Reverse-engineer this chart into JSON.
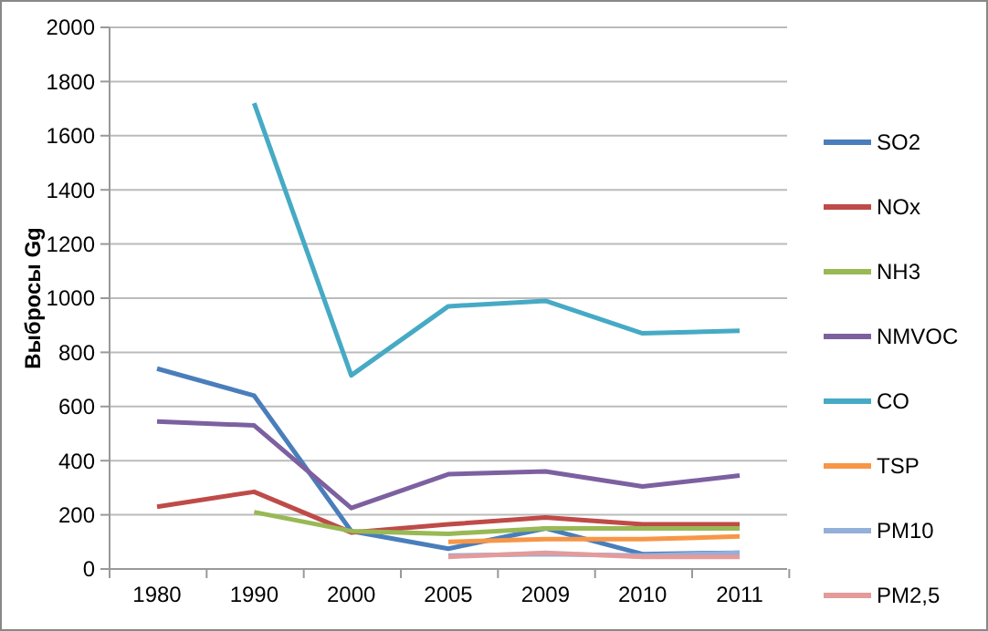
{
  "chart_data": {
    "type": "line",
    "ylabel": "Выбросы Gg",
    "categories": [
      "1980",
      "1990",
      "2000",
      "2005",
      "2009",
      "2010",
      "2011"
    ],
    "ylim": [
      0,
      2000
    ],
    "yticks": [
      0,
      200,
      400,
      600,
      800,
      1000,
      1200,
      1400,
      1600,
      1800,
      2000
    ],
    "grid": "y",
    "legend": "right",
    "marker": "none",
    "series": [
      {
        "name": "SO2",
        "color": "#4a7ebb",
        "values": [
          740,
          640,
          140,
          75,
          150,
          55,
          60
        ]
      },
      {
        "name": "NOx",
        "color": "#be4b48",
        "values": [
          230,
          285,
          135,
          165,
          190,
          165,
          165
        ]
      },
      {
        "name": "NH3",
        "color": "#98b954",
        "values": [
          null,
          210,
          140,
          130,
          150,
          150,
          150
        ]
      },
      {
        "name": "NMVOC",
        "color": "#7d60a0",
        "values": [
          545,
          530,
          225,
          350,
          360,
          305,
          345
        ]
      },
      {
        "name": "CO",
        "color": "#46aac5",
        "values": [
          null,
          1720,
          715,
          970,
          990,
          870,
          880
        ]
      },
      {
        "name": "TSP",
        "color": "#f79646",
        "values": [
          null,
          null,
          null,
          100,
          110,
          110,
          120
        ]
      },
      {
        "name": "PM10",
        "color": "#94afd8",
        "values": [
          null,
          null,
          null,
          50,
          55,
          50,
          60
        ]
      },
      {
        "name": "PM2,5",
        "color": "#e39b9b",
        "values": [
          null,
          null,
          null,
          45,
          60,
          45,
          45
        ]
      }
    ]
  }
}
